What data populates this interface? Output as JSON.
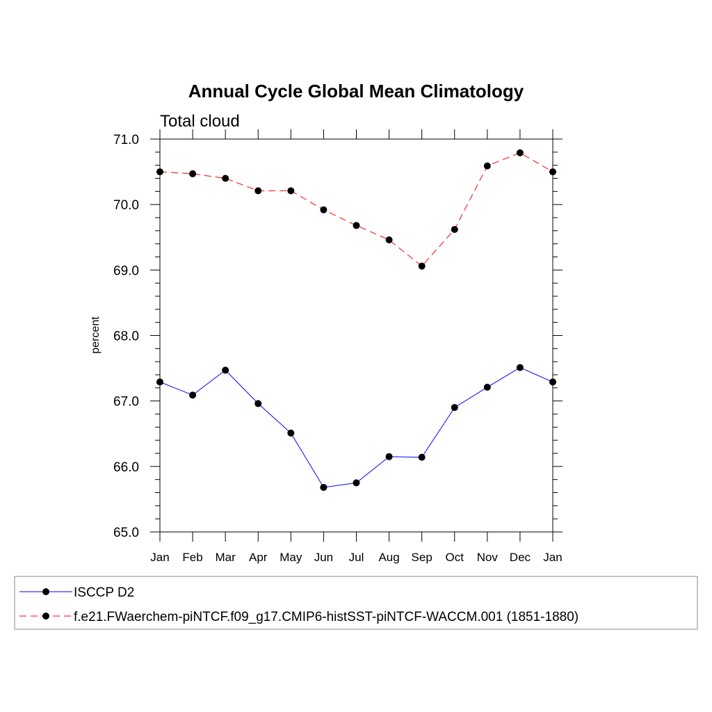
{
  "chart_data": {
    "type": "line",
    "title": "Annual Cycle Global Mean Climatology",
    "subtitle": "Total cloud",
    "xlabel": "",
    "ylabel": "percent",
    "categories": [
      "Jan",
      "Feb",
      "Mar",
      "Apr",
      "May",
      "Jun",
      "Jul",
      "Aug",
      "Sep",
      "Oct",
      "Nov",
      "Dec",
      "Jan"
    ],
    "ylim": [
      65.0,
      71.0
    ],
    "yticks": [
      "65.0",
      "66.0",
      "67.0",
      "68.0",
      "69.0",
      "70.0",
      "71.0"
    ],
    "grid": false,
    "legend_position": "bottom",
    "series": [
      {
        "name": "ISCCP D2",
        "color": "#0000ff",
        "dash": "solid",
        "marker": "filled-circle",
        "values": [
          67.29,
          67.09,
          67.47,
          66.96,
          66.51,
          65.68,
          65.75,
          66.15,
          66.14,
          66.9,
          67.21,
          67.51,
          67.29
        ]
      },
      {
        "name": "f.e21.FWaerchem-piNTCF.f09_g17.CMIP6-histSST-piNTCF-WACCM.001 (1851-1880)",
        "color": "#ff0000",
        "dash": "dashed",
        "marker": "filled-circle",
        "values": [
          70.5,
          70.47,
          70.4,
          70.21,
          70.21,
          69.92,
          69.68,
          69.46,
          69.06,
          69.62,
          70.59,
          70.79,
          70.5
        ]
      }
    ]
  }
}
